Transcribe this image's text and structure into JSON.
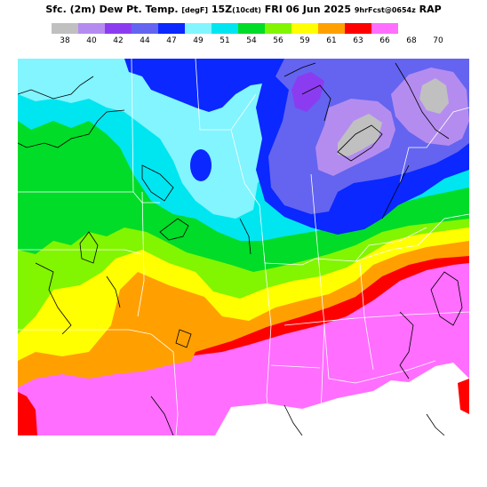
{
  "header": {
    "product": "Sfc. (2m) Dew Pt. Temp.",
    "units": "[degF]",
    "valid": "15Z",
    "valid_local": "(10cdt)",
    "date": "FRI 06 Jun 2025",
    "forecast_info": "9hrFcst@0654z",
    "model": "RAP"
  },
  "legend": {
    "colors": [
      "#c0c0c0",
      "#b48cf0",
      "#8c3cf0",
      "#6464f0",
      "#0a28ff",
      "#82f5ff",
      "#00e6f0",
      "#00dc28",
      "#82f500",
      "#ffff00",
      "#ffa000",
      "#ff0000",
      "#ff6eff"
    ],
    "ticks": [
      "38",
      "40",
      "42",
      "44",
      "47",
      "49",
      "51",
      "54",
      "56",
      "59",
      "61",
      "63",
      "66",
      "68",
      "70"
    ]
  },
  "map": {
    "region": "Central/Eastern US",
    "field_colors": {
      "background": "#ff6eff",
      "red": "#ff0000",
      "orange": "#ffa000",
      "yellow": "#ffff00",
      "lime": "#82f500",
      "green": "#00dc28",
      "cyan": "#00e6f0",
      "lightcyan": "#82f5ff",
      "blue": "#0a28ff",
      "medblue": "#6464f0",
      "purple": "#8c3cf0",
      "lavender": "#b48cf0",
      "gray": "#c0c0c0",
      "white": "#ffffff"
    }
  }
}
